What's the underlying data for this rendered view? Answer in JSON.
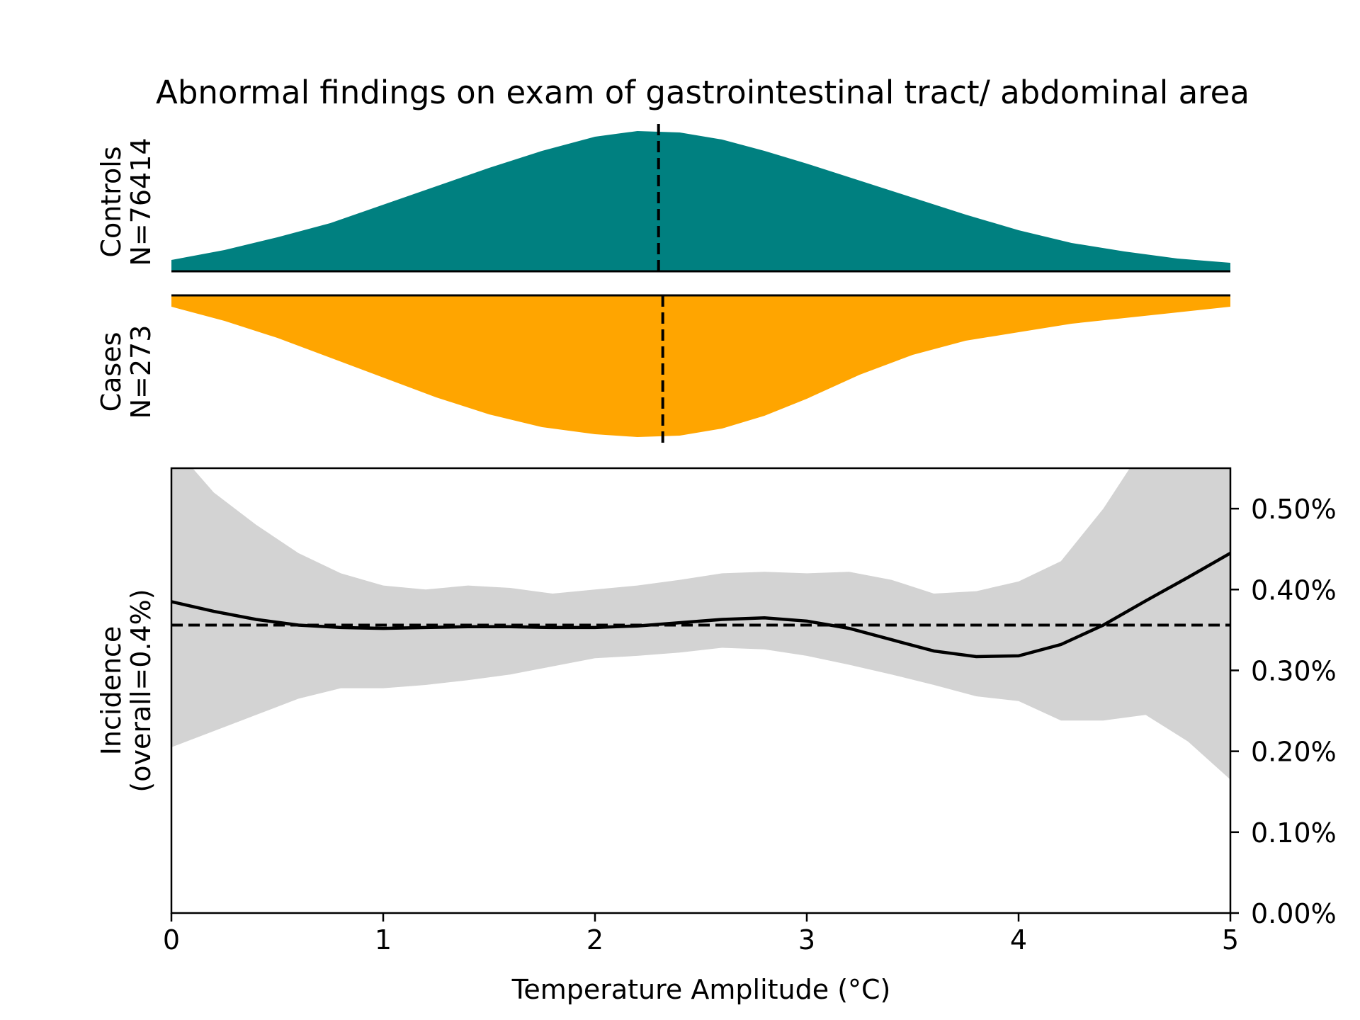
{
  "chart_data": [
    {
      "type": "area",
      "panel": "controls-density",
      "title": "Abnormal findings on exam of gastrointestinal tract/ abdominal area",
      "ylabel_line1": "Controls",
      "ylabel_line2": "N=76414",
      "color": "#008080",
      "x": [
        0,
        0.25,
        0.5,
        0.75,
        1.0,
        1.25,
        1.5,
        1.75,
        2.0,
        2.2,
        2.4,
        2.6,
        2.8,
        3.0,
        3.25,
        3.5,
        3.75,
        4.0,
        4.25,
        4.5,
        4.75,
        5.0
      ],
      "density": [
        0.08,
        0.15,
        0.24,
        0.34,
        0.47,
        0.6,
        0.73,
        0.85,
        0.95,
        0.99,
        0.98,
        0.93,
        0.85,
        0.76,
        0.64,
        0.52,
        0.4,
        0.29,
        0.2,
        0.14,
        0.09,
        0.06
      ],
      "median": 2.3,
      "xlim": [
        0,
        5
      ]
    },
    {
      "type": "area",
      "panel": "cases-density",
      "ylabel_line1": "Cases",
      "ylabel_line2": "N=273",
      "color": "#FFA500",
      "x": [
        0,
        0.25,
        0.5,
        0.75,
        1.0,
        1.25,
        1.5,
        1.75,
        2.0,
        2.2,
        2.4,
        2.6,
        2.8,
        3.0,
        3.25,
        3.5,
        3.75,
        4.0,
        4.25,
        4.5,
        4.75,
        5.0
      ],
      "density": [
        0.08,
        0.18,
        0.3,
        0.44,
        0.58,
        0.72,
        0.84,
        0.93,
        0.98,
        1.0,
        0.99,
        0.94,
        0.85,
        0.73,
        0.56,
        0.42,
        0.32,
        0.26,
        0.2,
        0.16,
        0.12,
        0.08
      ],
      "median": 2.32,
      "xlim": [
        0,
        5
      ]
    },
    {
      "type": "line",
      "panel": "incidence",
      "xlabel": "Temperature Amplitude (°C)",
      "ylabel_line1": "Incidence",
      "ylabel_line2": "(overall=0.4%)",
      "xlim": [
        0,
        5
      ],
      "ylim": [
        0,
        0.55
      ],
      "x_ticks": [
        0,
        1,
        2,
        3,
        4,
        5
      ],
      "x_tick_labels": [
        "0",
        "1",
        "2",
        "3",
        "4",
        "5"
      ],
      "y_ticks": [
        0,
        0.1,
        0.2,
        0.3,
        0.4,
        0.5
      ],
      "y_tick_labels": [
        "0.00%",
        "0.10%",
        "0.20%",
        "0.30%",
        "0.40%",
        "0.50%"
      ],
      "reference_line": 0.356,
      "series": [
        {
          "x": [
            0,
            0.2,
            0.4,
            0.6,
            0.8,
            1.0,
            1.2,
            1.4,
            1.6,
            1.8,
            2.0,
            2.2,
            2.4,
            2.6,
            2.8,
            3.0,
            3.2,
            3.4,
            3.6,
            3.8,
            4.0,
            4.2,
            4.4,
            4.6,
            4.8,
            5.0
          ],
          "values": [
            0.385,
            0.373,
            0.363,
            0.356,
            0.353,
            0.352,
            0.353,
            0.354,
            0.354,
            0.353,
            0.353,
            0.355,
            0.359,
            0.363,
            0.365,
            0.361,
            0.352,
            0.338,
            0.324,
            0.317,
            0.318,
            0.332,
            0.356,
            0.386,
            0.415,
            0.445
          ],
          "ci_lower": [
            0.205,
            0.225,
            0.245,
            0.265,
            0.278,
            0.278,
            0.282,
            0.288,
            0.295,
            0.305,
            0.315,
            0.318,
            0.322,
            0.328,
            0.326,
            0.318,
            0.307,
            0.295,
            0.282,
            0.268,
            0.262,
            0.238,
            0.238,
            0.245,
            0.212,
            0.165
          ],
          "ci_upper": [
            0.58,
            0.52,
            0.48,
            0.445,
            0.42,
            0.405,
            0.4,
            0.405,
            0.402,
            0.395,
            0.4,
            0.405,
            0.412,
            0.42,
            0.422,
            0.42,
            0.422,
            0.412,
            0.395,
            0.398,
            0.41,
            0.435,
            0.5,
            0.58,
            0.62,
            0.66
          ]
        }
      ],
      "ci_color": "#d3d3d3",
      "grid": false
    }
  ]
}
